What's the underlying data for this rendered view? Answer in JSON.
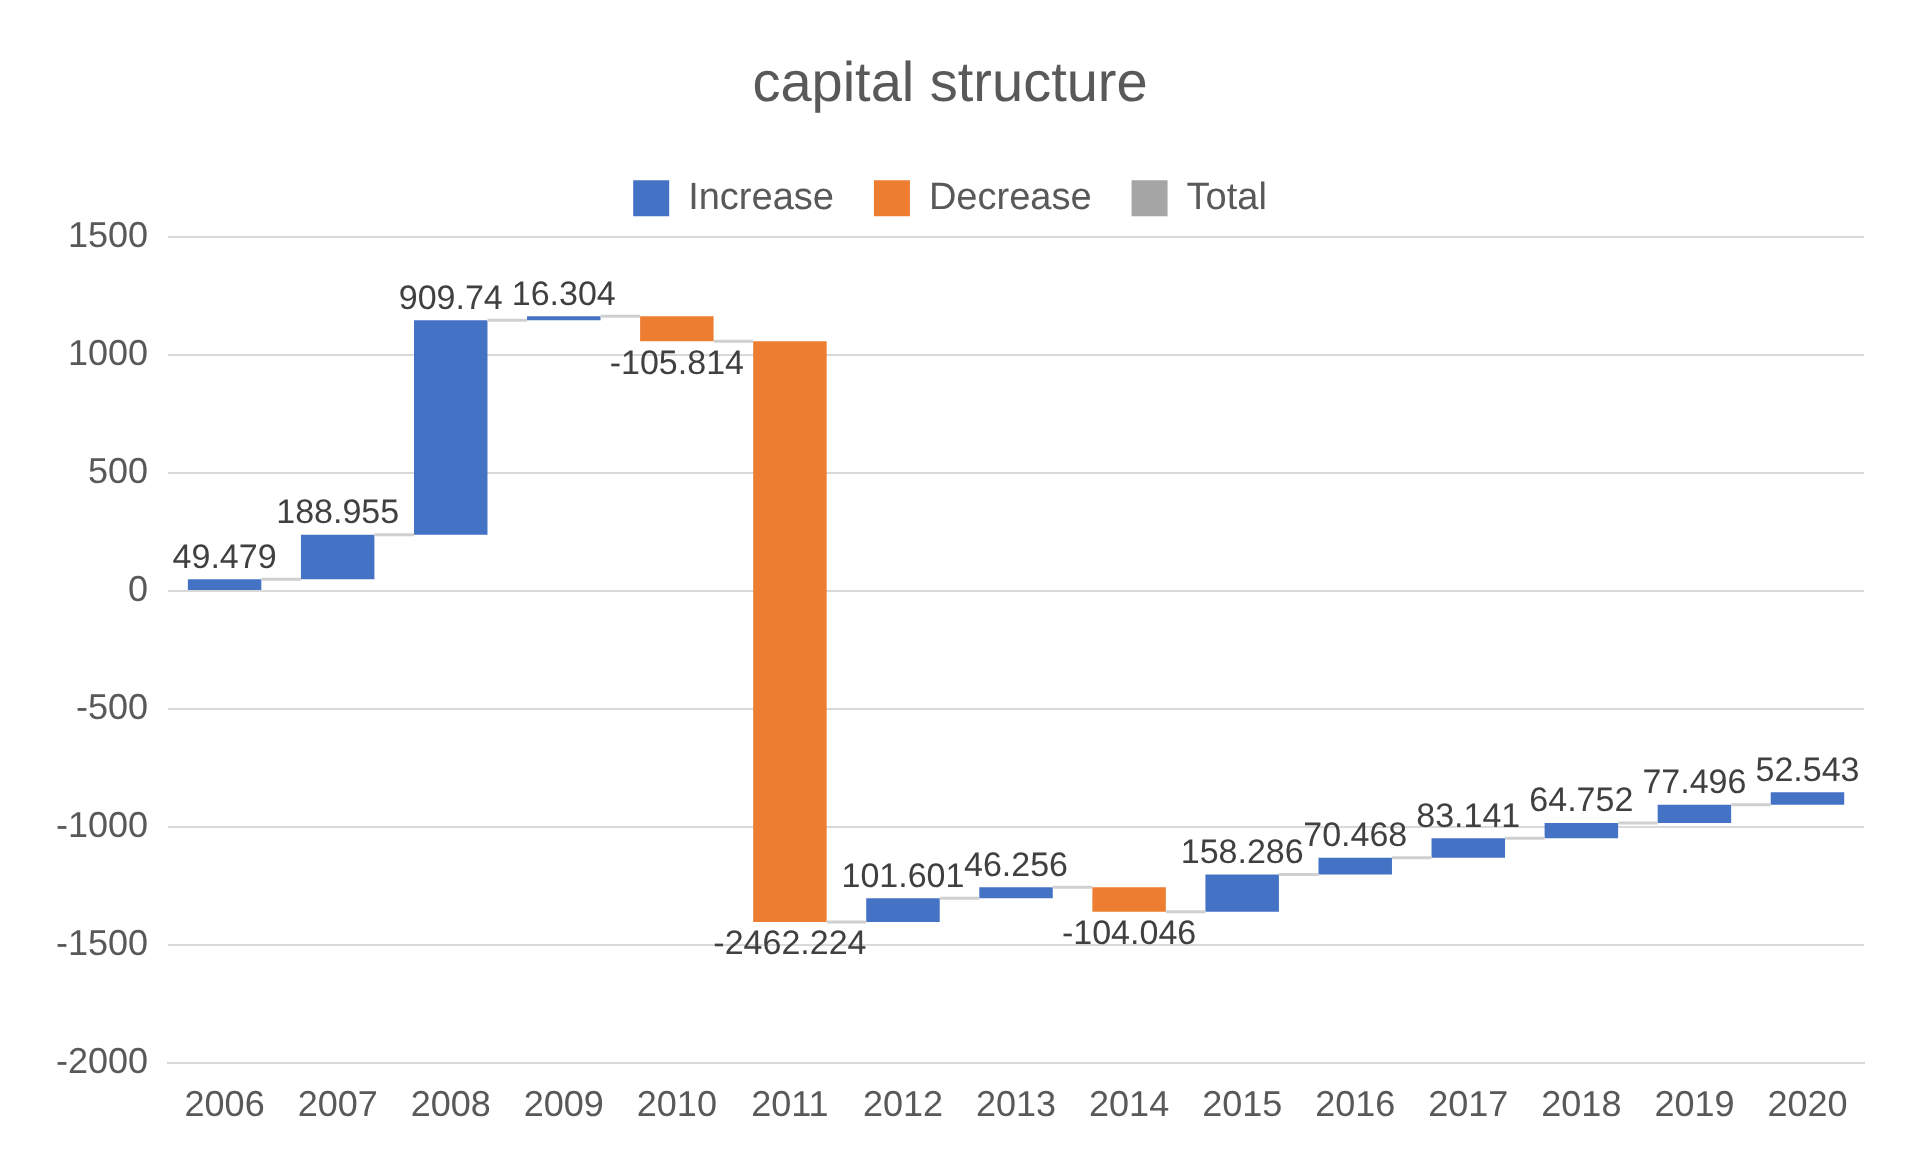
{
  "chart_data": {
    "type": "bar",
    "title": "capital structure",
    "categories": [
      "2006",
      "2007",
      "2008",
      "2009",
      "2010",
      "2011",
      "2012",
      "2013",
      "2014",
      "2015",
      "2016",
      "2017",
      "2018",
      "2019",
      "2020"
    ],
    "series": [
      {
        "name": "Increase",
        "color": "#4472c4",
        "base": [
          0,
          49.479,
          238.434,
          1148.174,
          null,
          null,
          -1403.56,
          -1301.959,
          null,
          -1359.749,
          -1201.463,
          -1130.995,
          -1047.854,
          -983.102,
          -905.606
        ],
        "values": [
          49.479,
          188.955,
          909.74,
          16.304,
          null,
          null,
          101.601,
          46.256,
          null,
          158.286,
          70.468,
          83.141,
          64.752,
          77.496,
          52.543
        ]
      },
      {
        "name": "Decrease",
        "color": "#ed7d31",
        "base": [
          null,
          null,
          null,
          null,
          1164.478,
          1058.664,
          null,
          null,
          -1255.703,
          null,
          null,
          null,
          null,
          null,
          null
        ],
        "values": [
          null,
          null,
          null,
          null,
          -105.814,
          -2462.224,
          null,
          null,
          -104.046,
          null,
          null,
          null,
          null,
          null,
          null
        ]
      },
      {
        "name": "Total",
        "color": "#a5a5a5",
        "values": [
          null,
          null,
          null,
          null,
          null,
          null,
          null,
          null,
          null,
          null,
          null,
          null,
          null,
          null,
          null
        ]
      }
    ],
    "ylim": [
      -2000,
      1500
    ],
    "yticks": [
      -2000,
      -1500,
      -1000,
      -500,
      0,
      500,
      1000,
      1500
    ],
    "grid": "y",
    "legend": "top",
    "data_labels": true
  }
}
